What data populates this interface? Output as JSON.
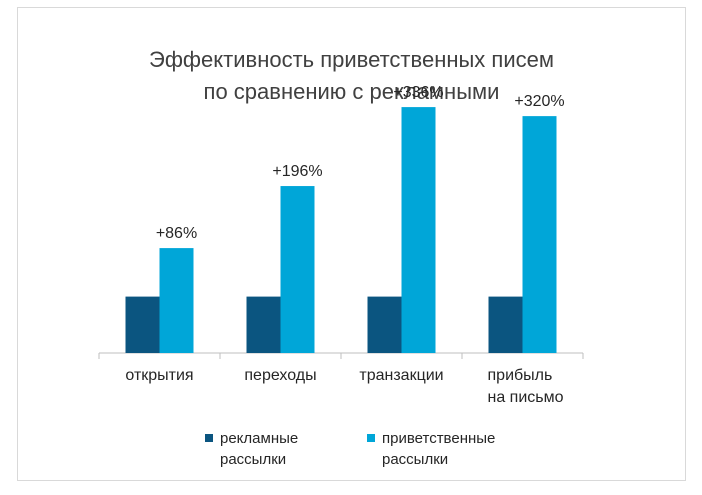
{
  "colors": {
    "advertising": "#0b5580",
    "welcome": "#00a6d8",
    "axis": "#bfbfbf",
    "text": "#262626",
    "title": "#404040"
  },
  "chart_data": {
    "type": "bar",
    "title_lines": [
      "Эффективность приветственных писем",
      "по сравнению с рекламными"
    ],
    "categories": [
      [
        "открытия"
      ],
      [
        "переходы"
      ],
      [
        "транзакции"
      ],
      [
        "прибыль",
        "на письмо"
      ]
    ],
    "series": [
      {
        "name_lines": [
          "рекламные",
          "рассылки"
        ],
        "values": [
          100,
          100,
          100,
          100
        ],
        "color_key": "advertising"
      },
      {
        "name_lines": [
          "приветственные",
          "рассылки"
        ],
        "values": [
          186,
          296,
          436,
          420
        ],
        "color_key": "welcome"
      }
    ],
    "data_labels": [
      "+86%",
      "+196%",
      "+336%",
      "+320%"
    ],
    "ylim": [
      0,
      500
    ],
    "grid": false,
    "legend_position": "bottom"
  }
}
